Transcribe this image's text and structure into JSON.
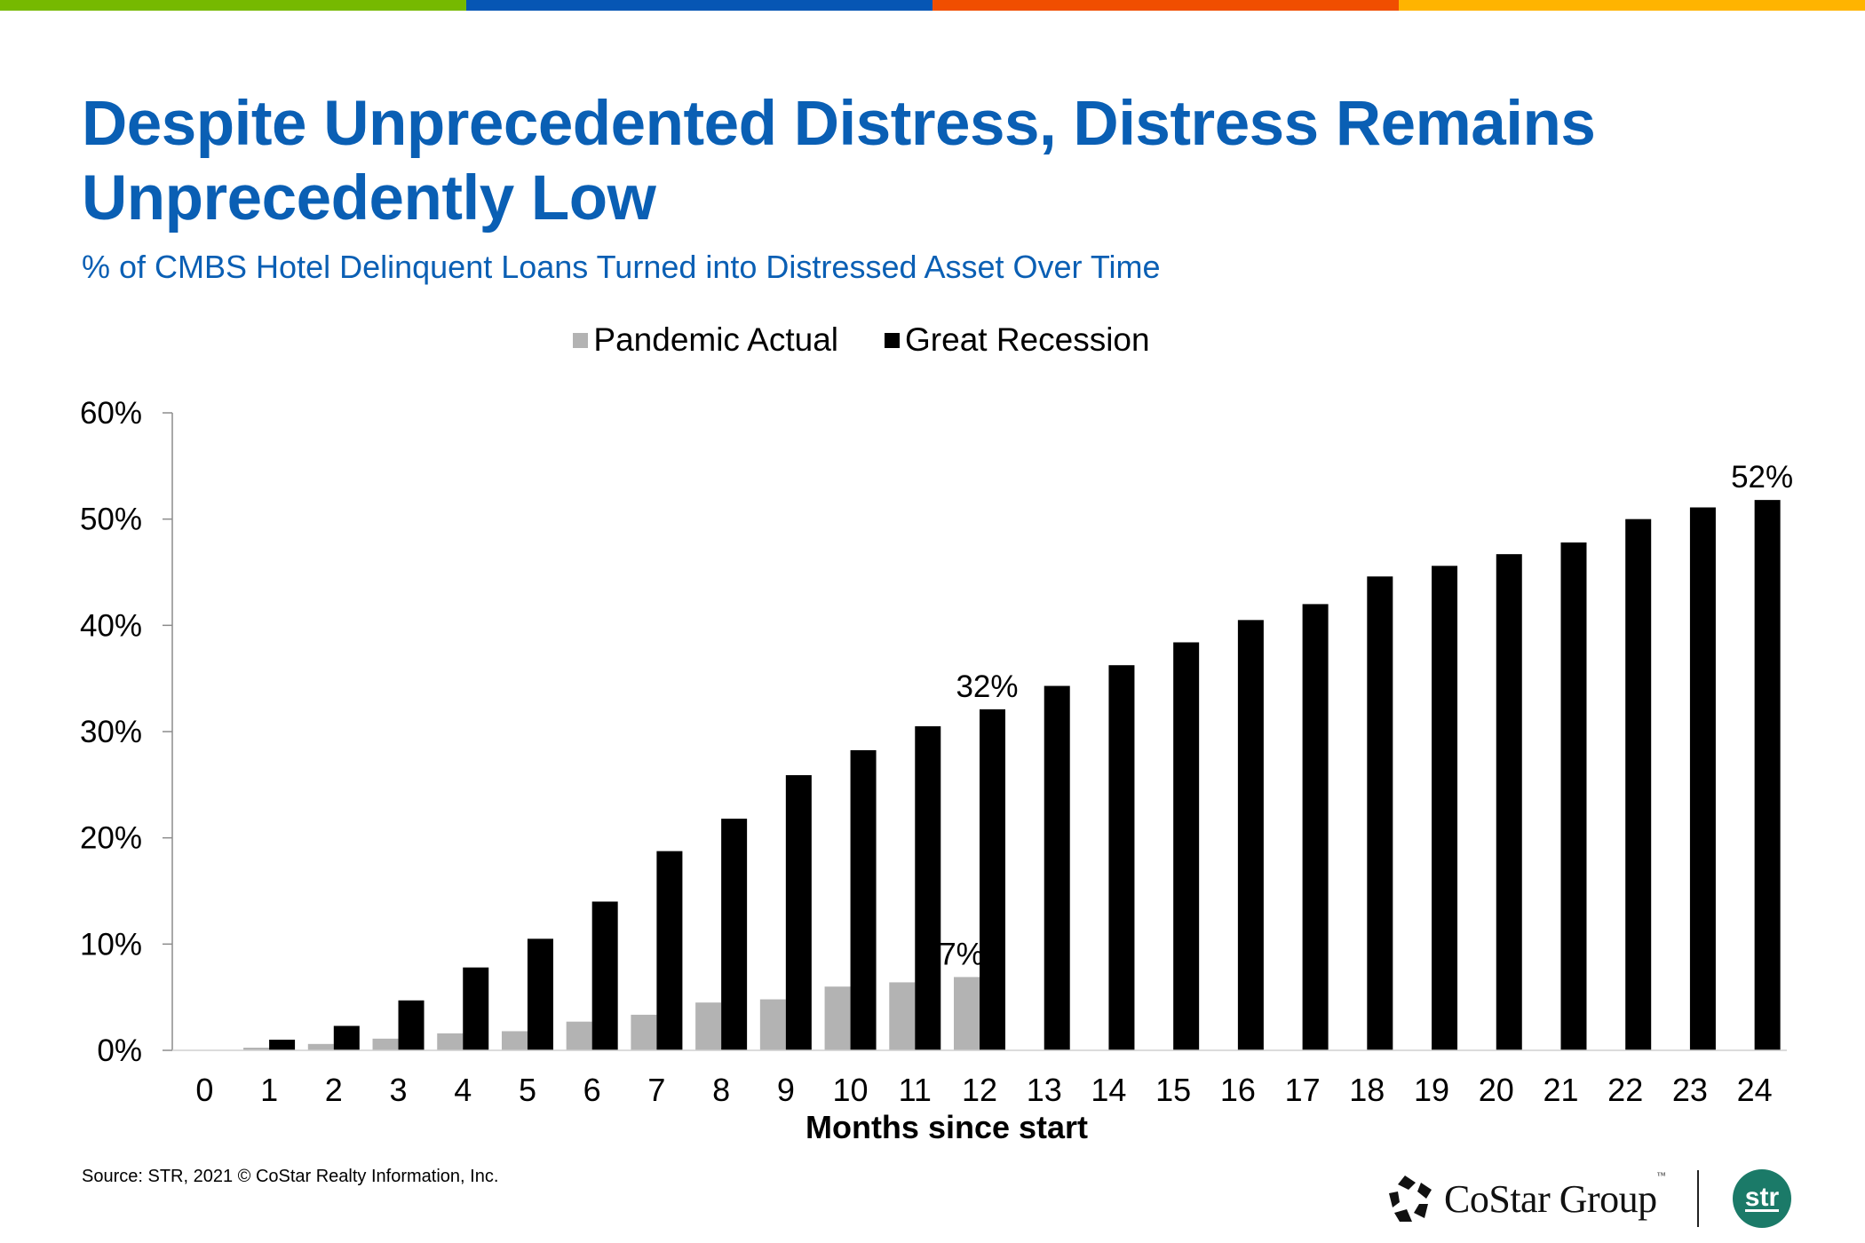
{
  "brand_bar": {
    "colors": [
      "#76b900",
      "#0656b4",
      "#f04e00",
      "#ffb400"
    ]
  },
  "header": {
    "title": "Despite Unprecedented Distress, Distress Remains Unprecedently Low",
    "subtitle": "% of CMBS Hotel Delinquent Loans Turned into Distressed Asset Over Time"
  },
  "footer": {
    "source": "Source: STR, 2021 © CoStar Realty Information, Inc.",
    "costar_logo_text": "CoStar Group",
    "costar_tm": "™",
    "str_logo_text": "str"
  },
  "chart_data": {
    "type": "bar",
    "title": "% of CMBS Hotel Delinquent Loans Turned into Distressed Asset Over Time",
    "xlabel": "Months since start",
    "ylabel": "",
    "ylim": [
      0,
      60
    ],
    "yticks": [
      0,
      10,
      20,
      30,
      40,
      50,
      60
    ],
    "ytick_labels": [
      "0%",
      "10%",
      "20%",
      "30%",
      "40%",
      "50%",
      "60%"
    ],
    "grid": false,
    "legend_position": "top-center",
    "categories": [
      "0",
      "1",
      "2",
      "3",
      "4",
      "5",
      "6",
      "7",
      "8",
      "9",
      "10",
      "11",
      "12",
      "13",
      "14",
      "15",
      "16",
      "17",
      "18",
      "19",
      "20",
      "21",
      "22",
      "23",
      "24"
    ],
    "series": [
      {
        "name": "Pandemic Actual",
        "color": "#b3b3b3",
        "values": [
          0,
          0.25,
          0.6,
          1.1,
          1.6,
          1.8,
          2.7,
          3.35,
          4.5,
          4.8,
          6.0,
          6.4,
          6.9,
          null,
          null,
          null,
          null,
          null,
          null,
          null,
          null,
          null,
          null,
          null,
          null
        ]
      },
      {
        "name": "Great Recession",
        "color": "#000000",
        "values": [
          0,
          1.0,
          2.3,
          4.7,
          7.8,
          10.5,
          14.0,
          18.75,
          21.8,
          25.9,
          28.25,
          30.5,
          32.1,
          34.3,
          36.25,
          38.4,
          40.5,
          42.0,
          44.6,
          45.6,
          46.7,
          47.8,
          50.0,
          51.1,
          51.8
        ]
      }
    ],
    "annotations": [
      {
        "series": "Pandemic Actual",
        "category": "12",
        "text": "7%"
      },
      {
        "series": "Great Recession",
        "category": "12",
        "text": "32%"
      },
      {
        "series": "Great Recession",
        "category": "24",
        "text": "52%"
      }
    ]
  }
}
